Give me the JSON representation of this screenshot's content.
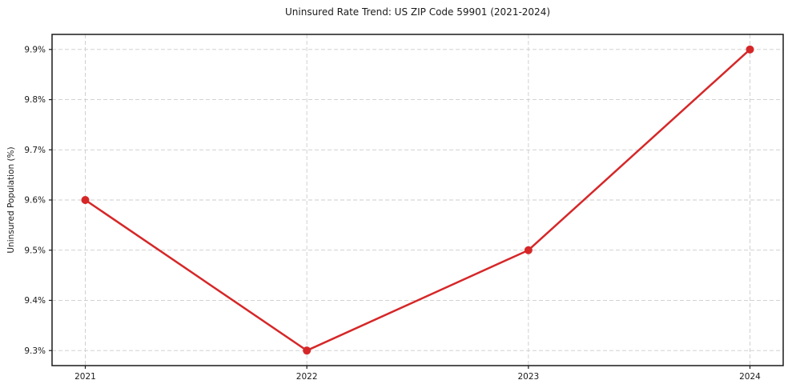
{
  "chart_data": {
    "type": "line",
    "title": "Uninsured Rate Trend: US ZIP Code 59901 (2021-2024)",
    "xlabel": "",
    "ylabel": "Uninsured Population (%)",
    "x": [
      2021,
      2022,
      2023,
      2024
    ],
    "series": [
      {
        "name": "Uninsured Rate",
        "values": [
          9.6,
          9.3,
          9.5,
          9.9
        ]
      }
    ],
    "xticks": [
      2021,
      2022,
      2023,
      2024
    ],
    "xtick_labels": [
      "2021",
      "2022",
      "2023",
      "2024"
    ],
    "yticks": [
      9.3,
      9.4,
      9.5,
      9.6,
      9.7,
      9.8,
      9.9
    ],
    "ytick_labels": [
      "9.3%",
      "9.4%",
      "9.5%",
      "9.6%",
      "9.7%",
      "9.8%",
      "9.9%"
    ],
    "xlim": [
      2020.85,
      2024.15
    ],
    "ylim": [
      9.27,
      9.93
    ],
    "grid": true,
    "grid_style": "dashed",
    "legend": "none",
    "colors": {
      "line": "#d62728",
      "marker": "#d62728",
      "grid": "#cccccc",
      "spine": "#1a1a1a",
      "text": "#1a1a1a",
      "background": "#ffffff"
    },
    "line_width": 2.5,
    "marker_radius": 5
  }
}
